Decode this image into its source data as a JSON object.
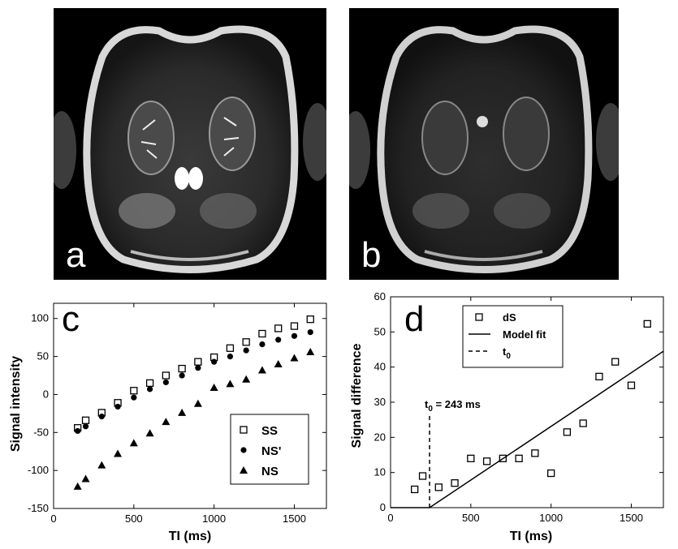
{
  "panels": {
    "a": "a",
    "b": "b",
    "c": "c",
    "d": "d"
  },
  "chart_data": [
    {
      "type": "scatter",
      "panel": "c",
      "xlabel": "TI (ms)",
      "ylabel": "Signal intensity",
      "xlim": [
        0,
        1700
      ],
      "ylim": [
        -150,
        120
      ],
      "xticks": [
        0,
        500,
        1000,
        1500
      ],
      "yticks": [
        -150,
        -100,
        -50,
        0,
        50,
        100
      ],
      "grid": false,
      "legend_position": "lower-right",
      "series": [
        {
          "name": "SS",
          "marker": "open-square",
          "x": [
            150,
            200,
            300,
            400,
            500,
            600,
            700,
            800,
            900,
            1000,
            1100,
            1200,
            1300,
            1400,
            1500,
            1600
          ],
          "y": [
            -44,
            -34,
            -24,
            -11,
            5,
            15,
            25,
            34,
            43,
            49,
            61,
            69,
            80,
            87,
            90,
            99
          ]
        },
        {
          "name": "NS'",
          "marker": "filled-circle",
          "x": [
            150,
            200,
            300,
            400,
            500,
            600,
            700,
            800,
            900,
            1000,
            1100,
            1200,
            1300,
            1400,
            1500,
            1600
          ],
          "y": [
            -48,
            -42,
            -29,
            -16,
            -4,
            7,
            16,
            25,
            35,
            43,
            50,
            58,
            66,
            72,
            77,
            82
          ]
        },
        {
          "name": "NS",
          "marker": "filled-triangle",
          "x": [
            150,
            200,
            300,
            400,
            500,
            600,
            700,
            800,
            900,
            1000,
            1100,
            1200,
            1300,
            1400,
            1500,
            1600
          ],
          "y": [
            -121,
            -111,
            -93,
            -78,
            -64,
            -51,
            -36,
            -24,
            -12,
            9,
            14,
            20,
            32,
            40,
            48,
            56
          ]
        }
      ]
    },
    {
      "type": "scatter",
      "panel": "d",
      "xlabel": "TI (ms)",
      "ylabel": "Signal difference",
      "xlim": [
        0,
        1700
      ],
      "ylim": [
        0,
        60
      ],
      "xticks": [
        0,
        500,
        1000,
        1500
      ],
      "yticks": [
        0,
        10,
        20,
        30,
        40,
        50,
        60
      ],
      "grid": false,
      "legend_position": "top-left",
      "annotation": "t0 = 243 ms",
      "series": [
        {
          "name": "dS",
          "marker": "open-square",
          "x": [
            150,
            200,
            300,
            400,
            500,
            600,
            700,
            800,
            900,
            1000,
            1100,
            1200,
            1300,
            1400,
            1500,
            1600
          ],
          "y": [
            5.2,
            9,
            5.8,
            7,
            14,
            13.2,
            14,
            14,
            15.5,
            9.8,
            21.5,
            24,
            37.3,
            41.5,
            34.8,
            52.3
          ]
        },
        {
          "name": "Model fit",
          "style": "solid-line",
          "x": [
            0,
            243,
            1700
          ],
          "y": [
            0,
            0,
            44.5
          ]
        },
        {
          "name": "t0",
          "style": "dashed-line",
          "x": [
            243,
            243
          ],
          "y": [
            0,
            27
          ]
        }
      ]
    }
  ]
}
